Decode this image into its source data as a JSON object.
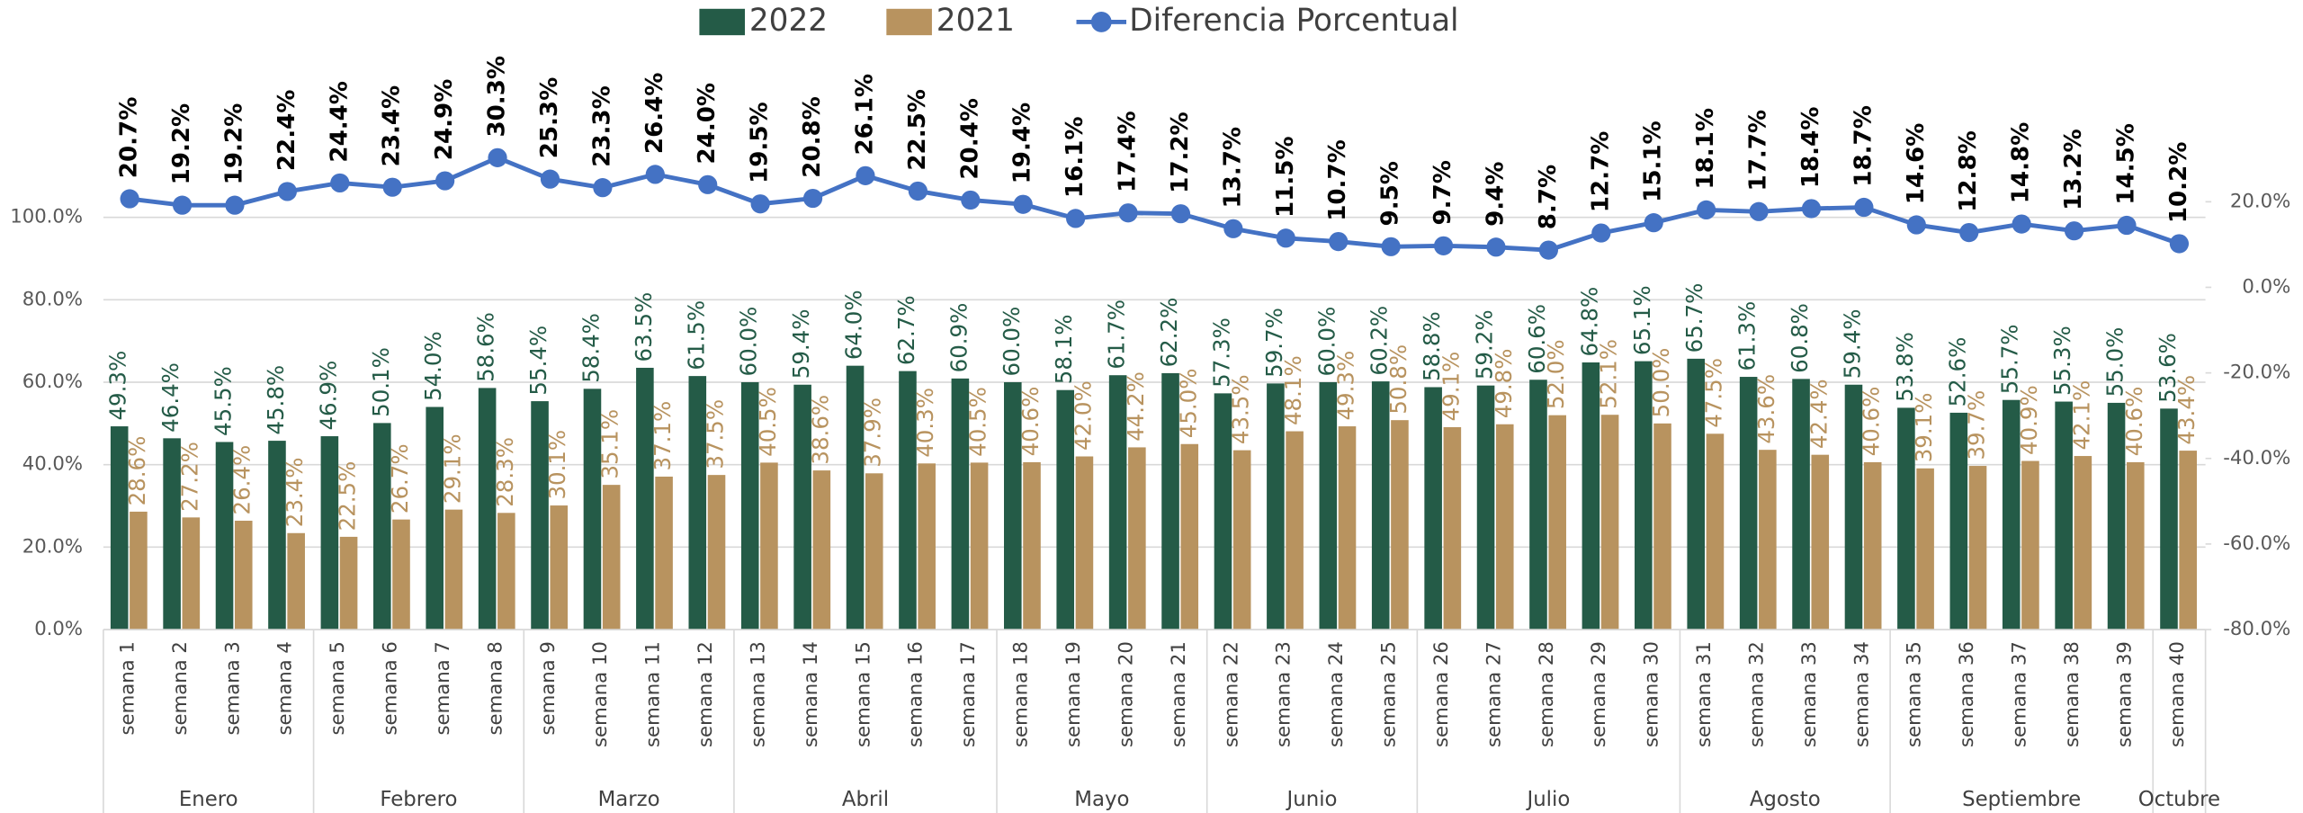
{
  "chart_data": {
    "type": "bar-line",
    "categories": [
      "semana 1",
      "semana 2",
      "semana 3",
      "semana 4",
      "semana 5",
      "semana 6",
      "semana 7",
      "semana 8",
      "semana 9",
      "semana 10",
      "semana 11",
      "semana 12",
      "semana 13",
      "semana 14",
      "semana 15",
      "semana 16",
      "semana 17",
      "semana 18",
      "semana 19",
      "semana 20",
      "semana 21",
      "semana 22",
      "semana 23",
      "semana 24",
      "semana 25",
      "semana 26",
      "semana 27",
      "semana 28",
      "semana 29",
      "semana 30",
      "semana 31",
      "semana 32",
      "semana 33",
      "semana 34",
      "semana 35",
      "semana 36",
      "semana 37",
      "semana 38",
      "semana 39",
      "semana 40"
    ],
    "groups": [
      {
        "label": "Enero",
        "span": 4
      },
      {
        "label": "Febrero",
        "span": 4
      },
      {
        "label": "Marzo",
        "span": 4
      },
      {
        "label": "Abril",
        "span": 5
      },
      {
        "label": "Mayo",
        "span": 4
      },
      {
        "label": "Junio",
        "span": 4
      },
      {
        "label": "Julio",
        "span": 5
      },
      {
        "label": "Agosto",
        "span": 4
      },
      {
        "label": "Septiembre",
        "span": 5
      },
      {
        "label": "Octubre",
        "span": 1
      }
    ],
    "series": [
      {
        "name": "2022",
        "type": "bar",
        "color": "#245b47",
        "values": [
          49.3,
          46.4,
          45.5,
          45.8,
          46.9,
          50.1,
          54.0,
          58.6,
          55.4,
          58.4,
          63.5,
          61.5,
          60.0,
          59.4,
          64.0,
          62.7,
          60.9,
          60.0,
          58.1,
          61.7,
          62.2,
          57.3,
          59.7,
          60.0,
          60.2,
          58.8,
          59.2,
          60.6,
          64.8,
          65.1,
          65.7,
          61.3,
          60.8,
          59.4,
          53.8,
          52.6,
          55.7,
          55.3,
          55.0,
          53.6
        ],
        "value_labels": [
          "49.3%",
          "46.4%",
          "45.5%",
          "45.8%",
          "46.9%",
          "50.1%",
          "54.0%",
          "58.6%",
          "55.4%",
          "58.4%",
          "63.5%",
          "61.5%",
          "60.0%",
          "59.4%",
          "64.0%",
          "62.7%",
          "60.9%",
          "60.0%",
          "58.1%",
          "61.7%",
          "62.2%",
          "57.3%",
          "59.7%",
          "60.0%",
          "60.2%",
          "58.8%",
          "59.2%",
          "60.6%",
          "64.8%",
          "65.1%",
          "65.7%",
          "61.3%",
          "60.8%",
          "59.4%",
          "53.8%",
          "52.6%",
          "55.7%",
          "55.3%",
          "55.0%",
          "53.6%"
        ]
      },
      {
        "name": "2021",
        "type": "bar",
        "color": "#b8935f",
        "values": [
          28.6,
          27.2,
          26.4,
          23.4,
          22.5,
          26.7,
          29.1,
          28.3,
          30.1,
          35.1,
          37.1,
          37.5,
          40.5,
          38.6,
          37.9,
          40.3,
          40.5,
          40.6,
          42.0,
          44.2,
          45.0,
          43.5,
          48.1,
          49.3,
          50.8,
          49.1,
          49.8,
          52.0,
          52.1,
          50.0,
          47.5,
          43.6,
          42.4,
          40.6,
          39.1,
          39.7,
          40.9,
          42.1,
          40.6,
          43.4
        ],
        "value_labels": [
          "28.6%",
          "27.2%",
          "26.4%",
          "23.4%",
          "22.5%",
          "26.7%",
          "29.1%",
          "28.3%",
          "30.1%",
          "35.1%",
          "37.1%",
          "37.5%",
          "40.5%",
          "38.6%",
          "37.9%",
          "40.3%",
          "40.5%",
          "40.6%",
          "42.0%",
          "44.2%",
          "45.0%",
          "43.5%",
          "48.1%",
          "49.3%",
          "50.8%",
          "49.1%",
          "49.8%",
          "52.0%",
          "52.1%",
          "50.0%",
          "47.5%",
          "43.6%",
          "42.4%",
          "40.6%",
          "39.1%",
          "39.7%",
          "40.9%",
          "42.1%",
          "40.6%",
          "43.4%"
        ]
      },
      {
        "name": "Diferencia Porcentual",
        "type": "line",
        "axis": "y2",
        "color": "#4472c4",
        "values": [
          20.7,
          19.2,
          19.2,
          22.4,
          24.4,
          23.4,
          24.9,
          30.3,
          25.3,
          23.3,
          26.4,
          24.0,
          19.5,
          20.8,
          26.1,
          22.5,
          20.4,
          19.4,
          16.1,
          17.4,
          17.2,
          13.7,
          11.5,
          10.7,
          9.5,
          9.7,
          9.4,
          8.7,
          12.7,
          15.1,
          18.1,
          17.7,
          18.4,
          18.7,
          14.6,
          12.8,
          14.8,
          13.2,
          14.5,
          10.2
        ],
        "value_labels": [
          "20.7%",
          "19.2%",
          "19.2%",
          "22.4%",
          "24.4%",
          "23.4%",
          "24.9%",
          "30.3%",
          "25.3%",
          "23.3%",
          "26.4%",
          "24.0%",
          "19.5%",
          "20.8%",
          "26.1%",
          "22.5%",
          "20.4%",
          "19.4%",
          "16.1%",
          "17.4%",
          "17.2%",
          "13.7%",
          "11.5%",
          "10.7%",
          "9.5%",
          "9.7%",
          "9.4%",
          "8.7%",
          "12.7%",
          "15.1%",
          "18.1%",
          "17.7%",
          "18.4%",
          "18.7%",
          "14.6%",
          "12.8%",
          "14.8%",
          "13.2%",
          "14.5%",
          "10.2%"
        ]
      }
    ],
    "ylim": [
      0,
      110
    ],
    "yticks": [
      {
        "value": 0,
        "label": "0.0%"
      },
      {
        "value": 20,
        "label": "20.0%"
      },
      {
        "value": 40,
        "label": "40.0%"
      },
      {
        "value": 60,
        "label": "60.0%"
      },
      {
        "value": 80,
        "label": "80.0%"
      },
      {
        "value": 100,
        "label": "100.0%"
      }
    ],
    "y2lim": [
      -80,
      26
    ],
    "y2ticks": [
      {
        "value": -80,
        "label": "-80.0%"
      },
      {
        "value": -60,
        "label": "-60.0%"
      },
      {
        "value": -40,
        "label": "-40.0%"
      },
      {
        "value": -20,
        "label": "-20.0%"
      },
      {
        "value": 0,
        "label": "0.0%"
      },
      {
        "value": 20,
        "label": "20.0%"
      }
    ],
    "grid": true,
    "legend": "top"
  }
}
